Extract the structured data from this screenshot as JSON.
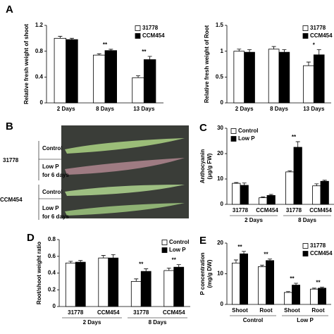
{
  "chart_data": [
    {
      "type": "bar",
      "panel": "A",
      "ylabel": "Relative fresh weight of shoot",
      "categories": [
        "2 Days",
        "8 Days",
        "13 Days"
      ],
      "series": [
        {
          "name": "31778",
          "color": "#ffffff",
          "values": [
            1.0,
            0.74,
            0.39
          ],
          "errors": [
            0.03,
            0.02,
            0.03
          ]
        },
        {
          "name": "CCM454",
          "color": "#000000",
          "values": [
            0.98,
            0.81,
            0.67
          ],
          "errors": [
            0.02,
            0.02,
            0.05
          ]
        }
      ],
      "significance": [
        null,
        "**",
        "**"
      ],
      "ylim": [
        0,
        1.2
      ],
      "yticks": [
        0,
        0.4,
        0.8,
        1.2
      ],
      "legend": "top-right"
    },
    {
      "type": "bar",
      "ylabel": "Relative fresh weight of Root",
      "categories": [
        "2 Days",
        "8 Days",
        "13 Days"
      ],
      "series": [
        {
          "name": "31778",
          "color": "#ffffff",
          "values": [
            1.0,
            1.04,
            0.72
          ],
          "errors": [
            0.04,
            0.05,
            0.07
          ]
        },
        {
          "name": "CCM454",
          "color": "#000000",
          "values": [
            0.98,
            0.98,
            0.93
          ],
          "errors": [
            0.05,
            0.05,
            0.1
          ]
        }
      ],
      "significance": [
        null,
        null,
        "*"
      ],
      "ylim": [
        0,
        1.5
      ],
      "yticks": [
        0,
        0.5,
        1,
        1.5
      ],
      "legend": "top-right"
    },
    {
      "type": "bar",
      "panel": "C",
      "ylabel": [
        "Anthocyanin",
        "(μg/g FW)"
      ],
      "categories": [
        "31778",
        "CCM454",
        "31778",
        "CCM454"
      ],
      "groups": [
        "2 Days",
        "8 Days"
      ],
      "series": [
        {
          "name": "Control",
          "color": "#ffffff",
          "values": [
            8.3,
            2.6,
            12.8,
            7.3
          ],
          "errors": [
            0.3,
            0.3,
            0.4,
            0.8
          ]
        },
        {
          "name": "Low P",
          "color": "#000000",
          "values": [
            7.5,
            3.5,
            22.5,
            9.1
          ],
          "errors": [
            0.9,
            0.4,
            2.2,
            0.4
          ]
        }
      ],
      "significance": [
        null,
        null,
        "**",
        null
      ],
      "ylim": [
        0,
        30
      ],
      "yticks": [
        0,
        10,
        20,
        30
      ],
      "legend": "top-left"
    },
    {
      "type": "bar",
      "panel": "D",
      "ylabel": "Root/shoot weight ratio",
      "categories": [
        "31778",
        "CCM454",
        "31778",
        "CCM454"
      ],
      "groups": [
        "2 Days",
        "8 Days"
      ],
      "series": [
        {
          "name": "Control",
          "color": "#ffffff",
          "values": [
            0.52,
            0.58,
            0.3,
            0.43
          ],
          "errors": [
            0.02,
            0.03,
            0.03,
            0.03
          ]
        },
        {
          "name": "Low P",
          "color": "#000000",
          "values": [
            0.53,
            0.58,
            0.42,
            0.47
          ],
          "errors": [
            0.02,
            0.04,
            0.03,
            0.03
          ]
        }
      ],
      "significance": [
        null,
        null,
        "**",
        "**"
      ],
      "ylim": [
        0,
        0.8
      ],
      "yticks": [
        0,
        0.2,
        0.4,
        0.6,
        0.8
      ],
      "legend": "top-right"
    },
    {
      "type": "bar",
      "panel": "E",
      "ylabel": [
        "P concentration",
        "(mg/g DW)"
      ],
      "categories": [
        "Shoot",
        "Root",
        "Shoot",
        "Root"
      ],
      "groups": [
        "Control",
        "Low P"
      ],
      "series": [
        {
          "name": "31778",
          "color": "#ffffff",
          "values": [
            13.5,
            12.3,
            3.9,
            5.0
          ],
          "errors": [
            1.0,
            0.5,
            0.3,
            0.3
          ]
        },
        {
          "name": "CCM454",
          "color": "#000000",
          "values": [
            16.5,
            14.3,
            6.3,
            5.3
          ],
          "errors": [
            0.8,
            0.5,
            0.6,
            0.3
          ]
        }
      ],
      "significance": [
        "**",
        "**",
        "**",
        "**"
      ],
      "ylim": [
        0,
        20
      ],
      "yticks": [
        0,
        10,
        20
      ],
      "legend": "top-right"
    }
  ],
  "panel_b": {
    "letter": "B",
    "rows": [
      {
        "genotype": "31778",
        "lines": [
          "Control",
          "Low P",
          "for 6 days"
        ]
      },
      {
        "genotype": "CCM454",
        "lines": [
          "Control",
          "Low P",
          "for 6 days"
        ]
      }
    ]
  }
}
